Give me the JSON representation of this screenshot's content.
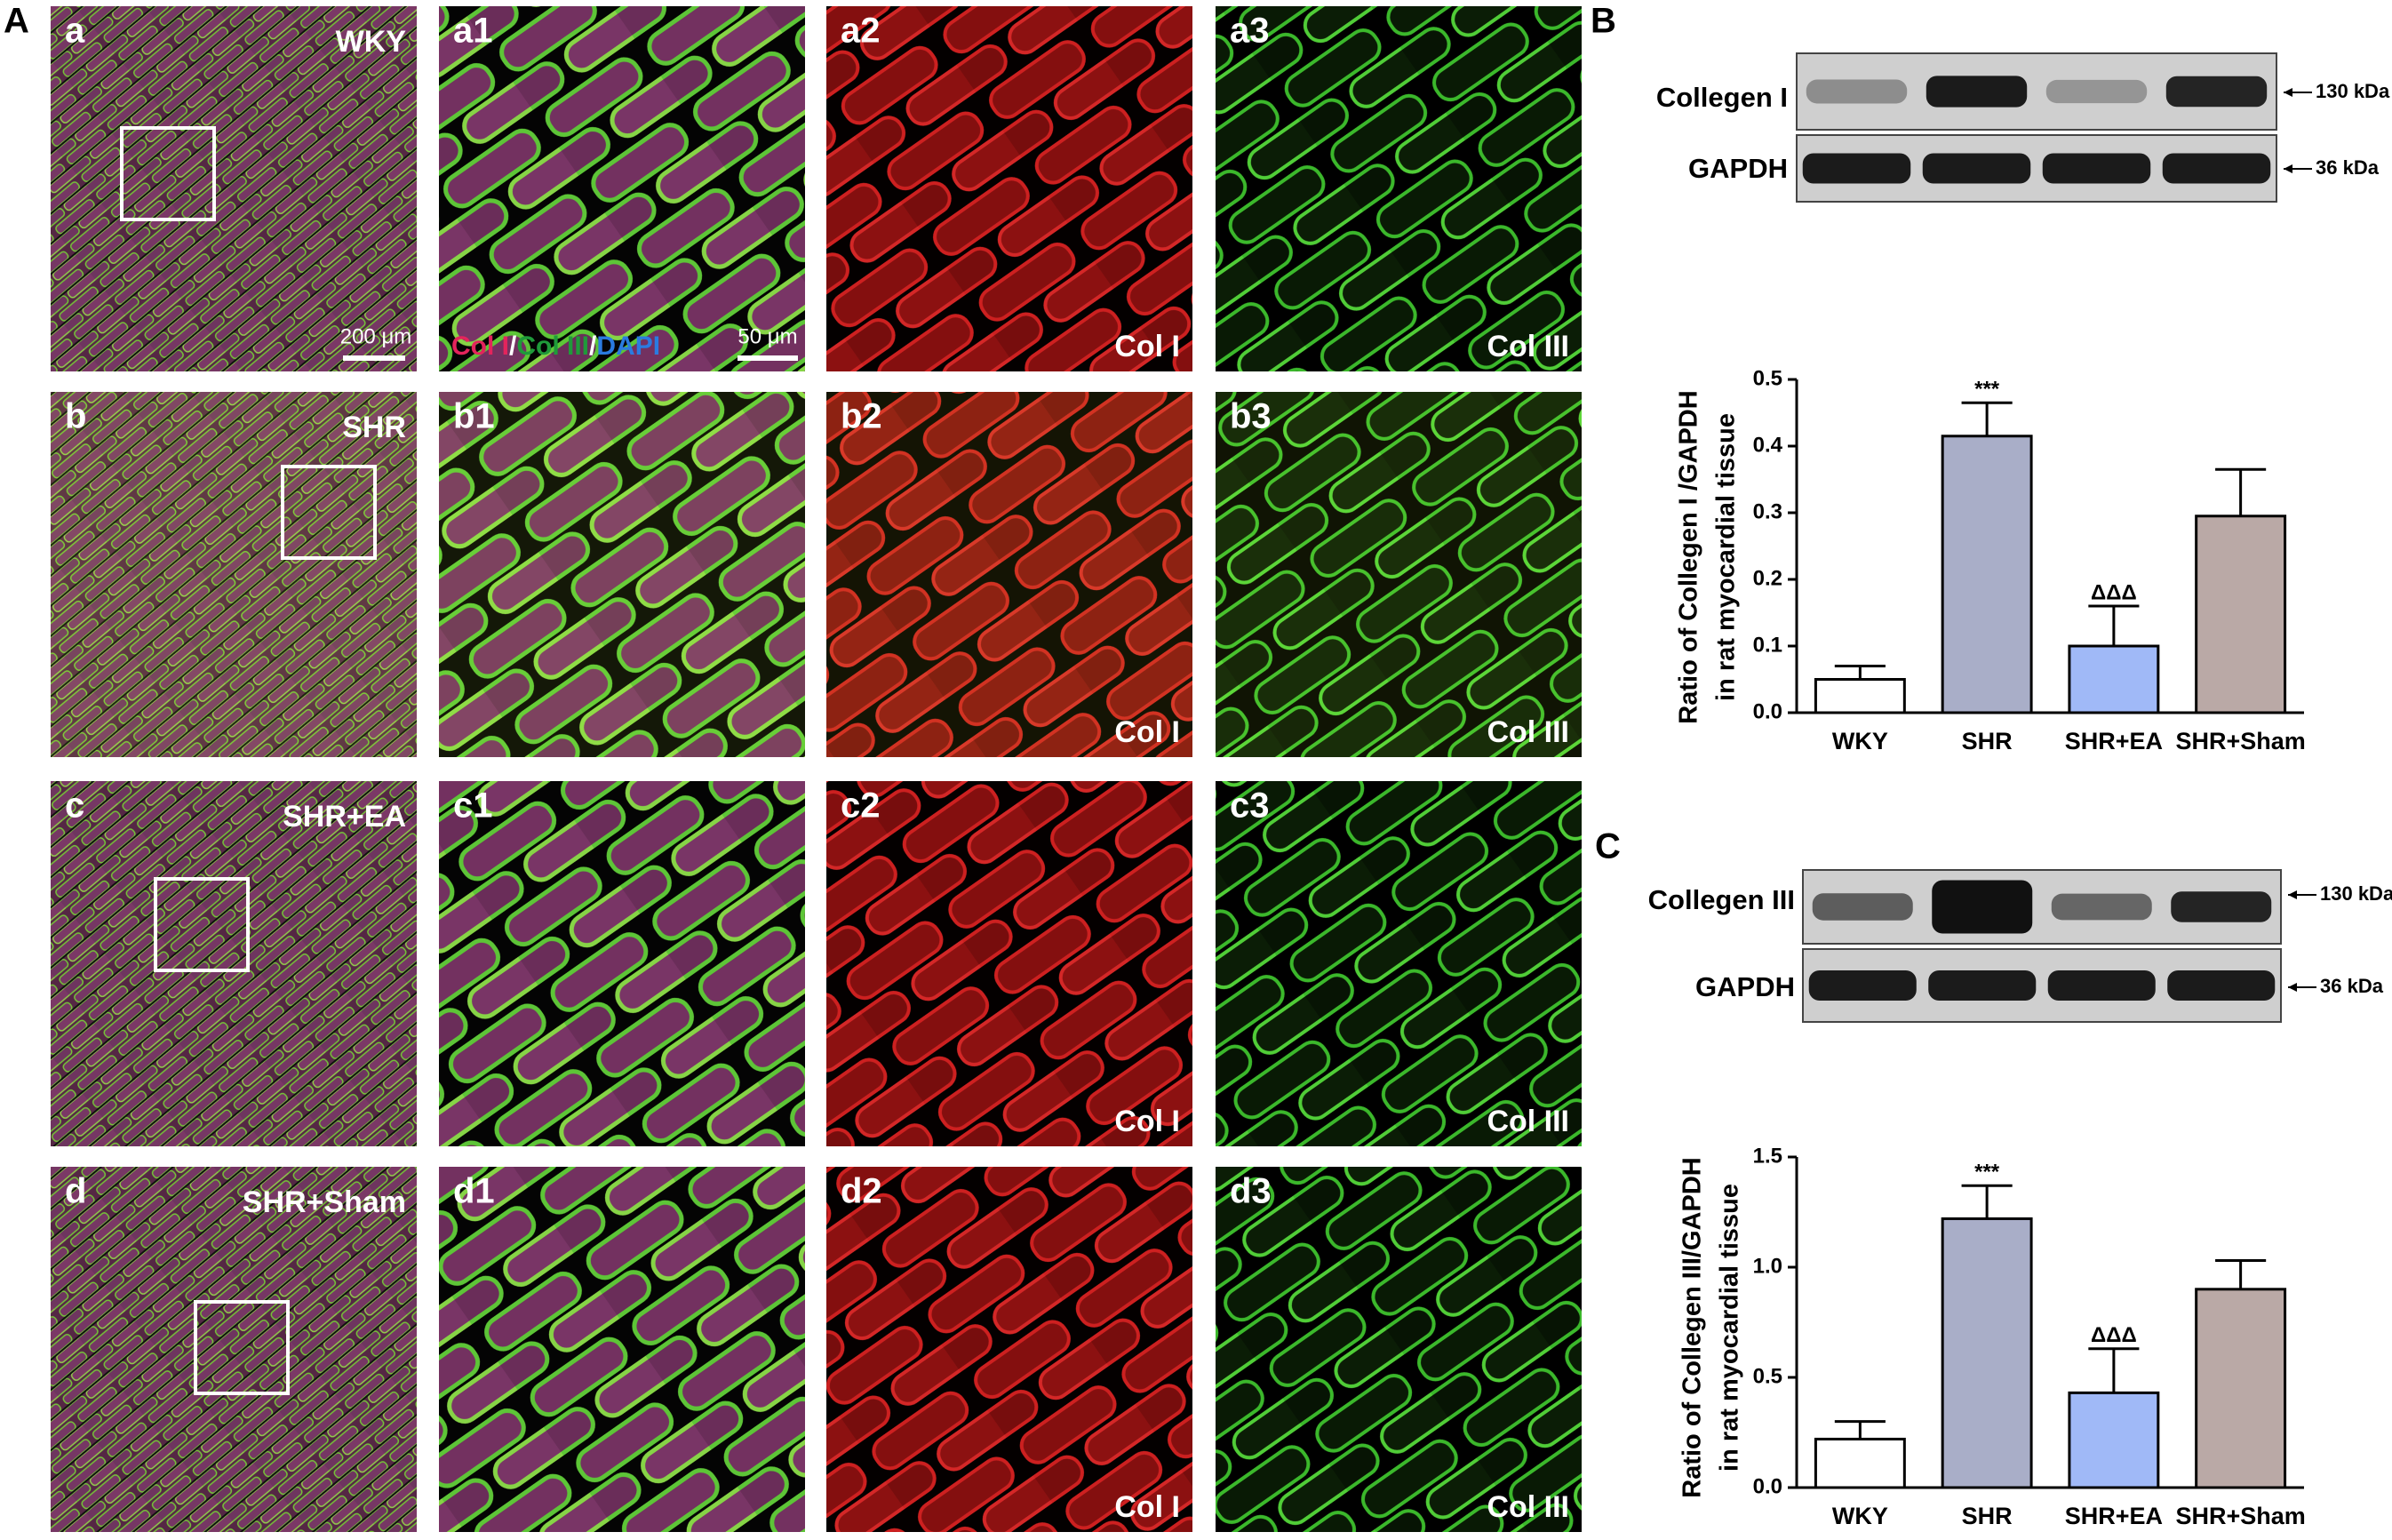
{
  "panel_labels": {
    "A": "A",
    "B": "B",
    "C": "C"
  },
  "micrographs": {
    "rows": [
      {
        "group": "WKY",
        "panels": [
          "a",
          "a1",
          "a2",
          "a3"
        ]
      },
      {
        "group": "SHR",
        "panels": [
          "b",
          "b1",
          "b2",
          "b3"
        ]
      },
      {
        "group": "SHR+EA",
        "panels": [
          "c",
          "c1",
          "c2",
          "c3"
        ]
      },
      {
        "group": "SHR+Sham",
        "panels": [
          "d",
          "d1",
          "d2",
          "d3"
        ]
      }
    ],
    "channel_captions": [
      "Col I",
      "Col III"
    ],
    "scale_bars": {
      "overview": "200 μm",
      "zoom": "50 μm"
    },
    "stain_legend": [
      {
        "text": "Col I",
        "color": "#e3245c"
      },
      {
        "text": "/",
        "color": "#ffffff"
      },
      {
        "text": "Col III",
        "color": "#1f9a3a"
      },
      {
        "text": "/",
        "color": "#ffffff"
      },
      {
        "text": "DAPI",
        "color": "#2a7be0"
      }
    ]
  },
  "blots": [
    {
      "target": "Collegen I",
      "target_size": "130 kDa",
      "control": "GAPDH",
      "control_size": "36 kDa"
    },
    {
      "target": "Collegen III",
      "target_size": "130 kDa",
      "control": "GAPDH",
      "control_size": "36 kDa"
    }
  ],
  "chart_data": [
    {
      "type": "bar",
      "ylabel": [
        "Ratio of Collegen I /GAPDH",
        "in rat myocardial tissue"
      ],
      "categories": [
        "WKY",
        "SHR",
        "SHR+EA",
        "SHR+Sham"
      ],
      "values": [
        0.05,
        0.415,
        0.1,
        0.295
      ],
      "errors": [
        0.02,
        0.05,
        0.06,
        0.07
      ],
      "colors": [
        "#ffffff",
        "#a9aec8",
        "#a0b9f7",
        "#baa9a6"
      ],
      "annotations": [
        {
          "category": "SHR",
          "text": "***"
        },
        {
          "category": "SHR+EA",
          "text": "ΔΔΔ"
        }
      ],
      "ylim": [
        0,
        0.5
      ],
      "yticks": [
        {
          "value": 0,
          "label": "0.0"
        },
        0.1,
        0.2,
        0.3,
        0.4,
        0.5
      ]
    },
    {
      "type": "bar",
      "ylabel": [
        "Ratio of Collegen III/GAPDH",
        "in rat myocardial tissue"
      ],
      "categories": [
        "WKY",
        "SHR",
        "SHR+EA",
        "SHR+Sham"
      ],
      "values": [
        0.22,
        1.22,
        0.43,
        0.9
      ],
      "errors": [
        0.08,
        0.15,
        0.2,
        0.13
      ],
      "colors": [
        "#ffffff",
        "#a9aec8",
        "#a0b9f7",
        "#baa9a6"
      ],
      "annotations": [
        {
          "category": "SHR",
          "text": "***"
        },
        {
          "category": "SHR+EA",
          "text": "ΔΔΔ"
        }
      ],
      "ylim": [
        0,
        1.5
      ],
      "yticks": [
        {
          "value": 0,
          "label": "0.0"
        },
        0.5,
        {
          "value": 1,
          "label": "1.0"
        },
        1.5
      ]
    }
  ]
}
